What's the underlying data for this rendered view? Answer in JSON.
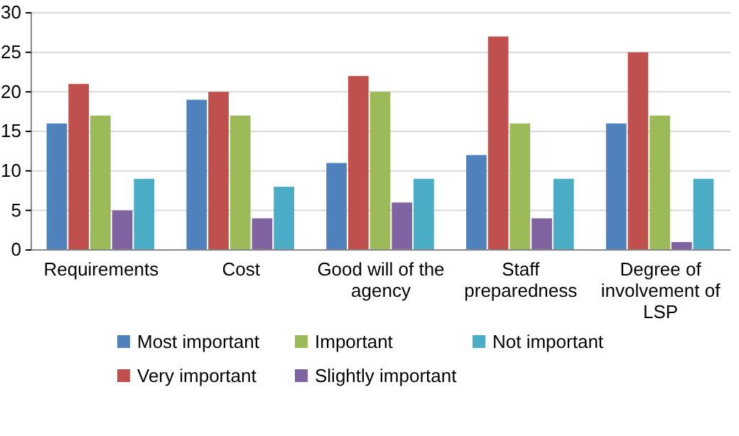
{
  "chart_data": {
    "type": "bar",
    "categories": [
      "Requirements",
      "Cost",
      "Good will of the agency",
      "Staff preparedness",
      "Degree of involvement of LSP"
    ],
    "series": [
      {
        "name": "Most important",
        "color": "#4f81bd",
        "values": [
          16,
          19,
          11,
          12,
          16
        ]
      },
      {
        "name": "Very important",
        "color": "#c0504d",
        "values": [
          21,
          20,
          22,
          27,
          25
        ]
      },
      {
        "name": "Important",
        "color": "#9bbb59",
        "values": [
          17,
          17,
          20,
          16,
          17
        ]
      },
      {
        "name": "Slightly important",
        "color": "#8064a2",
        "values": [
          5,
          4,
          6,
          4,
          1
        ]
      },
      {
        "name": "Not important",
        "color": "#4bacc6",
        "values": [
          9,
          8,
          9,
          9,
          9
        ]
      }
    ],
    "ylim": [
      0,
      30
    ],
    "yticks": [
      0,
      5,
      10,
      15,
      20,
      25,
      30
    ],
    "grid": "y",
    "legend": "bottom"
  }
}
